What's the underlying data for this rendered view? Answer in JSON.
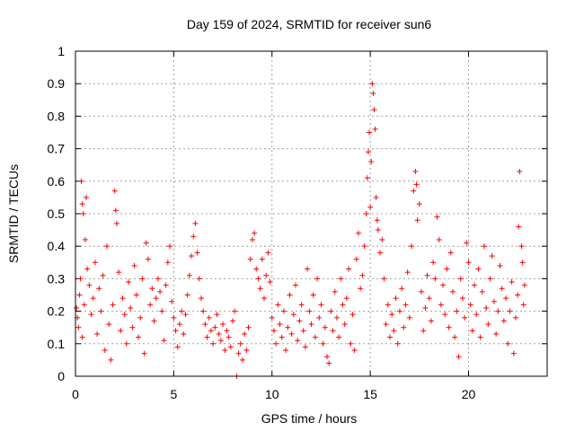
{
  "chart_data": {
    "type": "scatter",
    "title": "Day 159 of 2024, SRMTID for receiver sun6",
    "xlabel": "GPS time / hours",
    "ylabel": "SRMTID / TECUs",
    "xlim": [
      0,
      24
    ],
    "ylim": [
      0,
      1
    ],
    "x_ticks": [
      0,
      5,
      10,
      15,
      20
    ],
    "y_ticks": [
      0,
      0.1,
      0.2,
      0.3,
      0.4,
      0.5,
      0.6,
      0.7,
      0.8,
      0.9,
      1
    ],
    "x_tick_labels": [
      "0",
      "5",
      "10",
      "15",
      "20"
    ],
    "y_tick_labels": [
      "0",
      "0.1",
      "0.2",
      "0.3",
      "0.4",
      "0.5",
      "0.6",
      "0.7",
      "0.8",
      "0.9",
      "1"
    ],
    "grid": true,
    "marker": "+",
    "color": "#ff0000",
    "series": [
      {
        "name": "SRMTID",
        "points": [
          [
            0.05,
            0.21
          ],
          [
            0.1,
            0.18
          ],
          [
            0.15,
            0.15
          ],
          [
            0.2,
            0.25
          ],
          [
            0.25,
            0.3
          ],
          [
            0.3,
            0.6
          ],
          [
            0.35,
            0.12
          ],
          [
            0.35,
            0.53
          ],
          [
            0.4,
            0.5
          ],
          [
            0.45,
            0.22
          ],
          [
            0.5,
            0.42
          ],
          [
            0.55,
            0.55
          ],
          [
            0.6,
            0.33
          ],
          [
            0.7,
            0.28
          ],
          [
            0.8,
            0.19
          ],
          [
            0.9,
            0.24
          ],
          [
            1.0,
            0.35
          ],
          [
            1.1,
            0.13
          ],
          [
            1.2,
            0.27
          ],
          [
            1.3,
            0.2
          ],
          [
            1.4,
            0.31
          ],
          [
            1.5,
            0.08
          ],
          [
            1.6,
            0.4
          ],
          [
            1.7,
            0.16
          ],
          [
            1.8,
            0.05
          ],
          [
            1.9,
            0.22
          ],
          [
            2.0,
            0.57
          ],
          [
            2.05,
            0.51
          ],
          [
            2.1,
            0.47
          ],
          [
            2.2,
            0.32
          ],
          [
            2.3,
            0.14
          ],
          [
            2.4,
            0.24
          ],
          [
            2.5,
            0.19
          ],
          [
            2.6,
            0.1
          ],
          [
            2.7,
            0.29
          ],
          [
            2.8,
            0.21
          ],
          [
            2.9,
            0.15
          ],
          [
            3.0,
            0.34
          ],
          [
            3.1,
            0.25
          ],
          [
            3.2,
            0.12
          ],
          [
            3.3,
            0.18
          ],
          [
            3.4,
            0.3
          ],
          [
            3.5,
            0.07
          ],
          [
            3.6,
            0.41
          ],
          [
            3.7,
            0.36
          ],
          [
            3.8,
            0.22
          ],
          [
            3.9,
            0.27
          ],
          [
            4.0,
            0.17
          ],
          [
            4.1,
            0.24
          ],
          [
            4.2,
            0.3
          ],
          [
            4.3,
            0.26
          ],
          [
            4.4,
            0.2
          ],
          [
            4.5,
            0.11
          ],
          [
            4.6,
            0.28
          ],
          [
            4.7,
            0.35
          ],
          [
            4.8,
            0.4
          ],
          [
            4.9,
            0.23
          ],
          [
            5.0,
            0.18
          ],
          [
            5.1,
            0.14
          ],
          [
            5.2,
            0.09
          ],
          [
            5.3,
            0.16
          ],
          [
            5.4,
            0.2
          ],
          [
            5.5,
            0.13
          ],
          [
            5.6,
            0.19
          ],
          [
            5.7,
            0.25
          ],
          [
            5.8,
            0.31
          ],
          [
            5.9,
            0.37
          ],
          [
            6.0,
            0.43
          ],
          [
            6.1,
            0.47
          ],
          [
            6.2,
            0.38
          ],
          [
            6.3,
            0.3
          ],
          [
            6.4,
            0.24
          ],
          [
            6.5,
            0.2
          ],
          [
            6.6,
            0.16
          ],
          [
            6.7,
            0.12
          ],
          [
            6.8,
            0.18
          ],
          [
            6.9,
            0.14
          ],
          [
            7.0,
            0.1
          ],
          [
            7.1,
            0.15
          ],
          [
            7.2,
            0.19
          ],
          [
            7.3,
            0.13
          ],
          [
            7.4,
            0.11
          ],
          [
            7.5,
            0.16
          ],
          [
            7.6,
            0.08
          ],
          [
            7.7,
            0.14
          ],
          [
            7.8,
            0.12
          ],
          [
            7.9,
            0.09
          ],
          [
            8.0,
            0.17
          ],
          [
            8.1,
            0.2
          ],
          [
            8.2,
            0.0
          ],
          [
            8.3,
            0.07
          ],
          [
            8.4,
            0.1
          ],
          [
            8.5,
            0.05
          ],
          [
            8.6,
            0.13
          ],
          [
            8.7,
            0.08
          ],
          [
            8.8,
            0.15
          ],
          [
            8.9,
            0.36
          ],
          [
            9.0,
            0.42
          ],
          [
            9.1,
            0.44
          ],
          [
            9.2,
            0.33
          ],
          [
            9.3,
            0.3
          ],
          [
            9.4,
            0.27
          ],
          [
            9.5,
            0.36
          ],
          [
            9.6,
            0.24
          ],
          [
            9.7,
            0.31
          ],
          [
            9.8,
            0.38
          ],
          [
            9.9,
            0.29
          ],
          [
            10.0,
            0.18
          ],
          [
            10.1,
            0.14
          ],
          [
            10.2,
            0.1
          ],
          [
            10.3,
            0.22
          ],
          [
            10.4,
            0.16
          ],
          [
            10.5,
            0.12
          ],
          [
            10.6,
            0.2
          ],
          [
            10.7,
            0.08
          ],
          [
            10.8,
            0.15
          ],
          [
            10.9,
            0.25
          ],
          [
            11.0,
            0.13
          ],
          [
            11.1,
            0.19
          ],
          [
            11.2,
            0.28
          ],
          [
            11.3,
            0.11
          ],
          [
            11.4,
            0.17
          ],
          [
            11.5,
            0.22
          ],
          [
            11.6,
            0.14
          ],
          [
            11.7,
            0.09
          ],
          [
            11.8,
            0.33
          ],
          [
            11.9,
            0.2
          ],
          [
            12.0,
            0.16
          ],
          [
            12.1,
            0.25
          ],
          [
            12.2,
            0.12
          ],
          [
            12.3,
            0.3
          ],
          [
            12.4,
            0.18
          ],
          [
            12.5,
            0.22
          ],
          [
            12.6,
            0.1
          ],
          [
            12.7,
            0.15
          ],
          [
            12.8,
            0.06
          ],
          [
            12.9,
            0.04
          ],
          [
            13.0,
            0.2
          ],
          [
            13.1,
            0.14
          ],
          [
            13.2,
            0.26
          ],
          [
            13.3,
            0.18
          ],
          [
            13.4,
            0.12
          ],
          [
            13.5,
            0.3
          ],
          [
            13.6,
            0.22
          ],
          [
            13.7,
            0.16
          ],
          [
            13.8,
            0.24
          ],
          [
            13.9,
            0.33
          ],
          [
            14.0,
            0.1
          ],
          [
            14.1,
            0.19
          ],
          [
            14.2,
            0.08
          ],
          [
            14.3,
            0.36
          ],
          [
            14.4,
            0.44
          ],
          [
            14.5,
            0.27
          ],
          [
            14.6,
            0.31
          ],
          [
            14.7,
            0.4
          ],
          [
            14.8,
            0.5
          ],
          [
            14.85,
            0.61
          ],
          [
            14.9,
            0.69
          ],
          [
            14.95,
            0.75
          ],
          [
            15.0,
            0.52
          ],
          [
            15.05,
            0.66
          ],
          [
            15.1,
            0.9
          ],
          [
            15.15,
            0.87
          ],
          [
            15.2,
            0.82
          ],
          [
            15.25,
            0.76
          ],
          [
            15.3,
            0.55
          ],
          [
            15.35,
            0.48
          ],
          [
            15.4,
            0.45
          ],
          [
            15.5,
            0.38
          ],
          [
            15.6,
            0.42
          ],
          [
            15.7,
            0.3
          ],
          [
            15.8,
            0.16
          ],
          [
            15.9,
            0.22
          ],
          [
            16.0,
            0.12
          ],
          [
            16.1,
            0.19
          ],
          [
            16.2,
            0.14
          ],
          [
            16.3,
            0.24
          ],
          [
            16.4,
            0.1
          ],
          [
            16.5,
            0.2
          ],
          [
            16.6,
            0.27
          ],
          [
            16.7,
            0.15
          ],
          [
            16.8,
            0.22
          ],
          [
            16.9,
            0.32
          ],
          [
            17.0,
            0.18
          ],
          [
            17.1,
            0.4
          ],
          [
            17.2,
            0.57
          ],
          [
            17.3,
            0.63
          ],
          [
            17.35,
            0.59
          ],
          [
            17.4,
            0.48
          ],
          [
            17.5,
            0.53
          ],
          [
            17.6,
            0.26
          ],
          [
            17.7,
            0.14
          ],
          [
            17.8,
            0.21
          ],
          [
            17.9,
            0.31
          ],
          [
            18.0,
            0.24
          ],
          [
            18.1,
            0.17
          ],
          [
            18.2,
            0.35
          ],
          [
            18.3,
            0.3
          ],
          [
            18.4,
            0.49
          ],
          [
            18.5,
            0.42
          ],
          [
            18.6,
            0.22
          ],
          [
            18.7,
            0.28
          ],
          [
            18.8,
            0.19
          ],
          [
            18.9,
            0.33
          ],
          [
            19.0,
            0.15
          ],
          [
            19.1,
            0.38
          ],
          [
            19.2,
            0.26
          ],
          [
            19.3,
            0.12
          ],
          [
            19.4,
            0.2
          ],
          [
            19.5,
            0.06
          ],
          [
            19.6,
            0.3
          ],
          [
            19.7,
            0.24
          ],
          [
            19.8,
            0.18
          ],
          [
            19.9,
            0.41
          ],
          [
            20.0,
            0.35
          ],
          [
            20.1,
            0.22
          ],
          [
            20.2,
            0.14
          ],
          [
            20.3,
            0.28
          ],
          [
            20.4,
            0.19
          ],
          [
            20.5,
            0.33
          ],
          [
            20.6,
            0.12
          ],
          [
            20.7,
            0.26
          ],
          [
            20.8,
            0.4
          ],
          [
            20.9,
            0.21
          ],
          [
            21.0,
            0.16
          ],
          [
            21.1,
            0.3
          ],
          [
            21.2,
            0.37
          ],
          [
            21.3,
            0.23
          ],
          [
            21.4,
            0.13
          ],
          [
            21.5,
            0.2
          ],
          [
            21.6,
            0.34
          ],
          [
            21.7,
            0.27
          ],
          [
            21.8,
            0.17
          ],
          [
            21.9,
            0.24
          ],
          [
            22.0,
            0.1
          ],
          [
            22.1,
            0.2
          ],
          [
            22.2,
            0.29
          ],
          [
            22.3,
            0.07
          ],
          [
            22.4,
            0.18
          ],
          [
            22.5,
            0.25
          ],
          [
            22.55,
            0.46
          ],
          [
            22.6,
            0.63
          ],
          [
            22.7,
            0.4
          ],
          [
            22.75,
            0.35
          ],
          [
            22.8,
            0.22
          ],
          [
            22.85,
            0.28
          ]
        ]
      }
    ]
  }
}
